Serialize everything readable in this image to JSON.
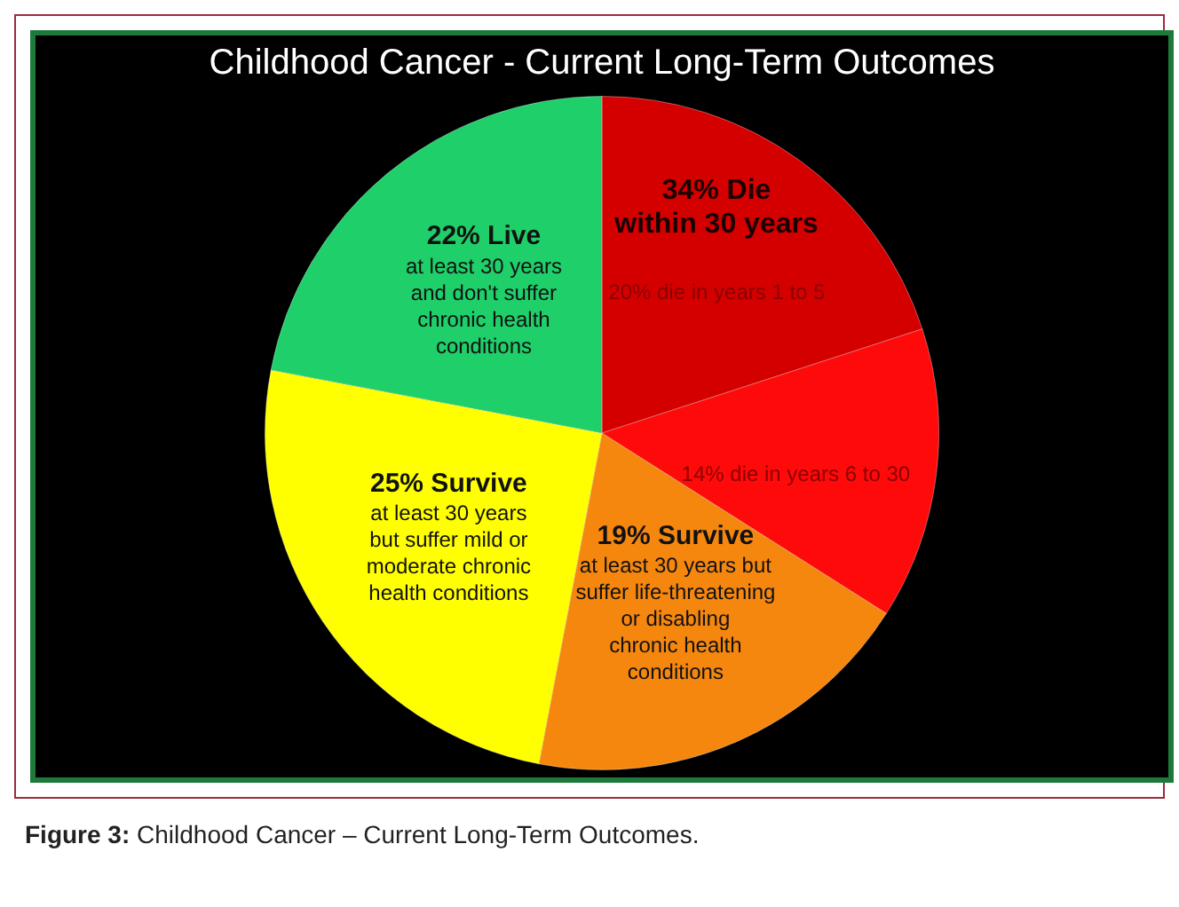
{
  "chart_data": {
    "type": "pie",
    "title": "Childhood Cancer - Current Long-Term Outcomes",
    "categories": [
      "20% die in years 1 to 5",
      "14% die in years 6 to 30",
      "19% Survive\nat least 30 years but\nsuffer life-threatening\nor disabling\nchronic health\nconditions",
      "25% Survive\nat least 30 years\nbut suffer mild or\nmoderate chronic\nhealth conditions",
      "22% Live\nat least 30 years\nand don't suffer\nchronic health\nconditions"
    ],
    "values": [
      20,
      14,
      19,
      25,
      22
    ],
    "colors": [
      "#d40000",
      "#ff0a0a",
      "#f5870f",
      "#ffff00",
      "#1ecf6a"
    ],
    "legend": false,
    "annotations": [
      "34% Die\nwithin 30 years",
      "Figure 3: Childhood Cancer – Current Long-Term Outcomes."
    ]
  }
}
